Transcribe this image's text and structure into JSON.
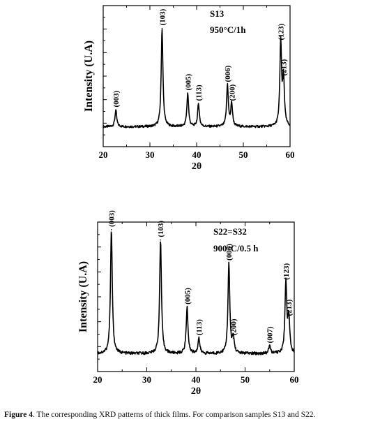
{
  "caption": {
    "label": "Figure 4",
    "text": ".  The corresponding XRD patterns of thick films. For comparison samples S13 and S22."
  },
  "chart_data": [
    {
      "type": "line",
      "sample": "S13",
      "condition": "950°C/1h",
      "xlabel": "2θ",
      "ylabel": "Intensity (U.A)",
      "xlim": [
        20,
        60
      ],
      "ylim": [
        0,
        100
      ],
      "xticks": [
        "20",
        "30",
        "40",
        "50",
        "60"
      ],
      "peaks": [
        {
          "x": 22.7,
          "y": 16,
          "label": "(003)"
        },
        {
          "x": 32.6,
          "y": 94,
          "label": "(103)"
        },
        {
          "x": 38.1,
          "y": 32,
          "label": "(005)"
        },
        {
          "x": 40.4,
          "y": 22,
          "label": "(113)"
        },
        {
          "x": 46.6,
          "y": 40,
          "label": "(006)"
        },
        {
          "x": 47.5,
          "y": 22,
          "label": "(200)"
        },
        {
          "x": 58.0,
          "y": 80,
          "label": "(123)"
        },
        {
          "x": 58.6,
          "y": 46,
          "label": "(213)"
        }
      ]
    },
    {
      "type": "line",
      "sample": "S22=S32",
      "condition": "900°C/0.5 h",
      "xlabel": "2θ",
      "ylabel": "Intensity (U.A)",
      "xlim": [
        20,
        60
      ],
      "ylim": [
        0,
        100
      ],
      "xticks": [
        "20",
        "30",
        "40",
        "50",
        "60"
      ],
      "peaks": [
        {
          "x": 22.8,
          "y": 96,
          "label": "(003)"
        },
        {
          "x": 32.8,
          "y": 88,
          "label": "(103)"
        },
        {
          "x": 38.2,
          "y": 36,
          "label": "(005)"
        },
        {
          "x": 40.6,
          "y": 12,
          "label": "(113)"
        },
        {
          "x": 46.7,
          "y": 70,
          "label": "(006)"
        },
        {
          "x": 47.6,
          "y": 12,
          "label": "(200)"
        },
        {
          "x": 55.0,
          "y": 6,
          "label": "(007)"
        },
        {
          "x": 58.3,
          "y": 55,
          "label": "(123)"
        },
        {
          "x": 58.9,
          "y": 27,
          "label": "(213)"
        }
      ]
    }
  ]
}
